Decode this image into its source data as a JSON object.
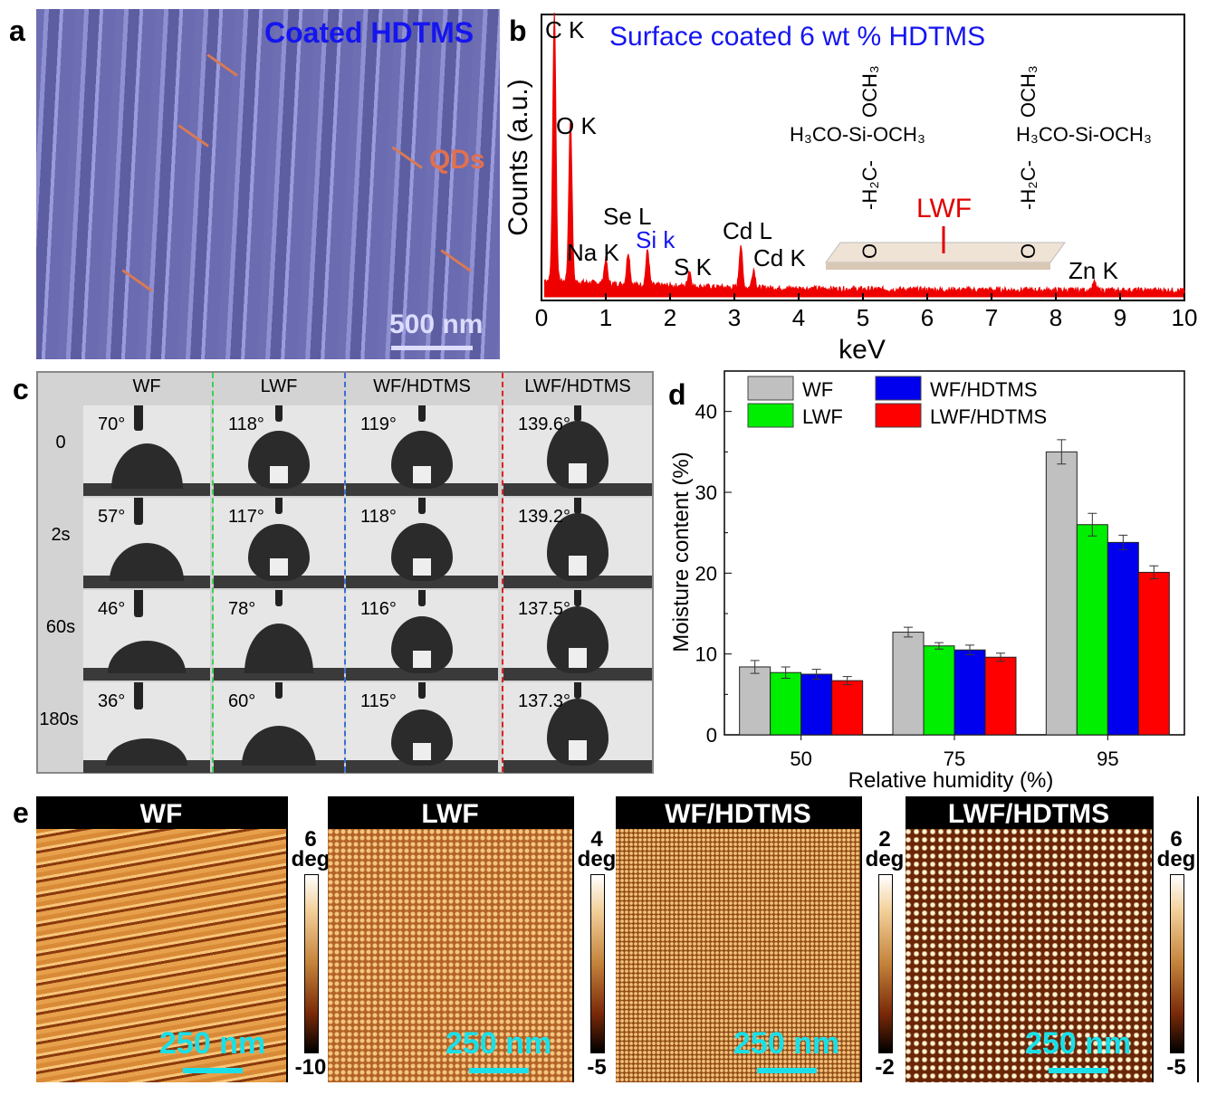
{
  "panels": {
    "a": "a",
    "b": "b",
    "c": "c",
    "d": "d",
    "e": "e"
  },
  "panel_a": {
    "title": "Coated HDTMS",
    "qd_label": "QDs",
    "scale_bar": "500 nm"
  },
  "panel_b": {
    "title": "Surface coated 6 wt % HDTMS",
    "structure": {
      "left": "H₃CO-Si-OCH₃",
      "top": "OCH₃",
      "chain": "-H₂C-",
      "o": "O",
      "si": "Si",
      "substrate": "LWF"
    }
  },
  "panel_c": {
    "columns": [
      "WF",
      "LWF",
      "WF/HDTMS",
      "LWF/HDTMS"
    ],
    "rows": [
      "0",
      "2s",
      "60s",
      "180s"
    ],
    "angles": [
      [
        "70°",
        "118°",
        "119°",
        "139.6°"
      ],
      [
        "57°",
        "117°",
        "118°",
        "139.2°"
      ],
      [
        "46°",
        "78°",
        "116°",
        "137.5°"
      ],
      [
        "36°",
        "60°",
        "115°",
        "137.3°"
      ]
    ],
    "angle_values": [
      [
        70,
        118,
        119,
        139.6
      ],
      [
        57,
        117,
        118,
        139.2
      ],
      [
        46,
        78,
        116,
        137.5
      ],
      [
        36,
        60,
        115,
        137.3
      ]
    ],
    "divider_colors": [
      "#3fcf55",
      "#3a6fd0",
      "#e02020"
    ]
  },
  "panel_e": [
    {
      "title": "WF",
      "max": "6",
      "unit": "deg",
      "min": "-10",
      "scale": "250 nm"
    },
    {
      "title": "LWF",
      "max": "4",
      "unit": "deg",
      "min": "-5",
      "scale": "250 nm"
    },
    {
      "title": "WF/HDTMS",
      "max": "2",
      "unit": "deg",
      "min": "-2",
      "scale": "250 nm"
    },
    {
      "title": "LWF/HDTMS",
      "max": "6",
      "unit": "deg",
      "min": "-5",
      "scale": "250 nm"
    }
  ],
  "chart_data": [
    {
      "type": "line",
      "title": "Surface coated 6 wt % HDTMS",
      "xlabel": "keV",
      "ylabel": "Counts (a.u.)",
      "xlim": [
        0,
        10
      ],
      "xticks": [
        "0",
        "1",
        "2",
        "3",
        "4",
        "5",
        "6",
        "7",
        "8",
        "9",
        "10"
      ],
      "color": "#ee0000",
      "peaks": [
        {
          "label": "C K",
          "x": 0.2,
          "y": 100
        },
        {
          "label": "O K",
          "x": 0.45,
          "y": 60
        },
        {
          "label": "Na K",
          "x": 1.0,
          "y": 9
        },
        {
          "label": "Se L",
          "x": 1.35,
          "y": 12
        },
        {
          "label": "Si k",
          "x": 1.65,
          "y": 13,
          "color": "#1515f0"
        },
        {
          "label": "S K",
          "x": 2.3,
          "y": 6
        },
        {
          "label": "Cd L",
          "x": 3.1,
          "y": 16
        },
        {
          "label": "Cd K",
          "x": 3.3,
          "y": 7
        },
        {
          "label": "Zn K",
          "x": 8.6,
          "y": 3
        }
      ]
    },
    {
      "type": "bar",
      "xlabel": "Relative humidity (%)",
      "ylabel": "Moisture content (%)",
      "ylim": [
        0,
        45
      ],
      "yticks": [
        "0",
        "10",
        "20",
        "30",
        "40"
      ],
      "categories": [
        "50",
        "75",
        "95"
      ],
      "legend": "top-left",
      "series": [
        {
          "name": "WF",
          "color": "#c0c0c0",
          "values": [
            8.4,
            12.7,
            35.0
          ],
          "errors": [
            0.8,
            0.6,
            1.5
          ]
        },
        {
          "name": "LWF",
          "color": "#00ee00",
          "values": [
            7.7,
            11.0,
            26.0
          ],
          "errors": [
            0.7,
            0.4,
            1.4
          ]
        },
        {
          "name": "WF/HDTMS",
          "color": "#0000ee",
          "values": [
            7.5,
            10.5,
            23.8
          ],
          "errors": [
            0.6,
            0.6,
            0.9
          ]
        },
        {
          "name": "LWF/HDTMS",
          "color": "#ff0000",
          "values": [
            6.7,
            9.6,
            20.1
          ],
          "errors": [
            0.5,
            0.5,
            0.8
          ]
        }
      ]
    }
  ]
}
